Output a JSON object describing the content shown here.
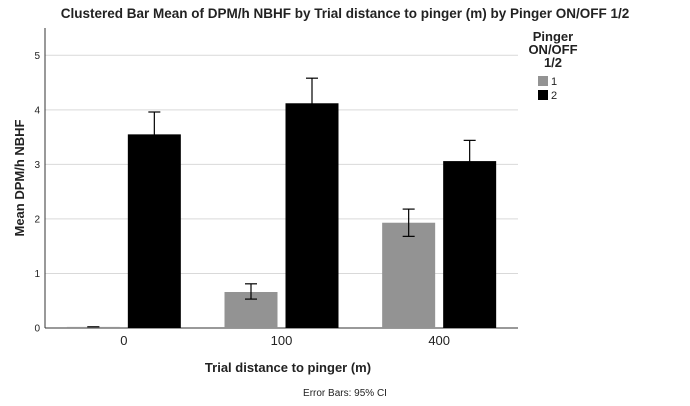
{
  "chart_data": {
    "type": "bar",
    "title": "Clustered Bar Mean of DPM/h NBHF by Trial distance to pinger (m) by Pinger ON/OFF 1/2",
    "xlabel": "Trial distance to pinger (m)",
    "ylabel": "Mean DPM/h NBHF",
    "categories": [
      "0",
      "100",
      "400"
    ],
    "ylim": [
      0,
      5.5
    ],
    "yticks": [
      0,
      1,
      2,
      3,
      4,
      5
    ],
    "grid": true,
    "legend": {
      "title_lines": [
        "Pinger",
        "ON/OFF",
        "1/2"
      ],
      "placement": "right"
    },
    "series": [
      {
        "name": "1",
        "color": "#939393",
        "values": [
          0.02,
          0.66,
          1.93
        ],
        "ci_low": [
          0.02,
          0.53,
          1.68
        ],
        "ci_high": [
          0.02,
          0.81,
          2.18
        ]
      },
      {
        "name": "2",
        "color": "#000000",
        "values": [
          3.55,
          4.12,
          3.06
        ],
        "ci_low": [
          3.14,
          3.67,
          2.67
        ],
        "ci_high": [
          3.96,
          4.58,
          3.44
        ]
      }
    ],
    "note": "Error Bars: 95% CI"
  }
}
